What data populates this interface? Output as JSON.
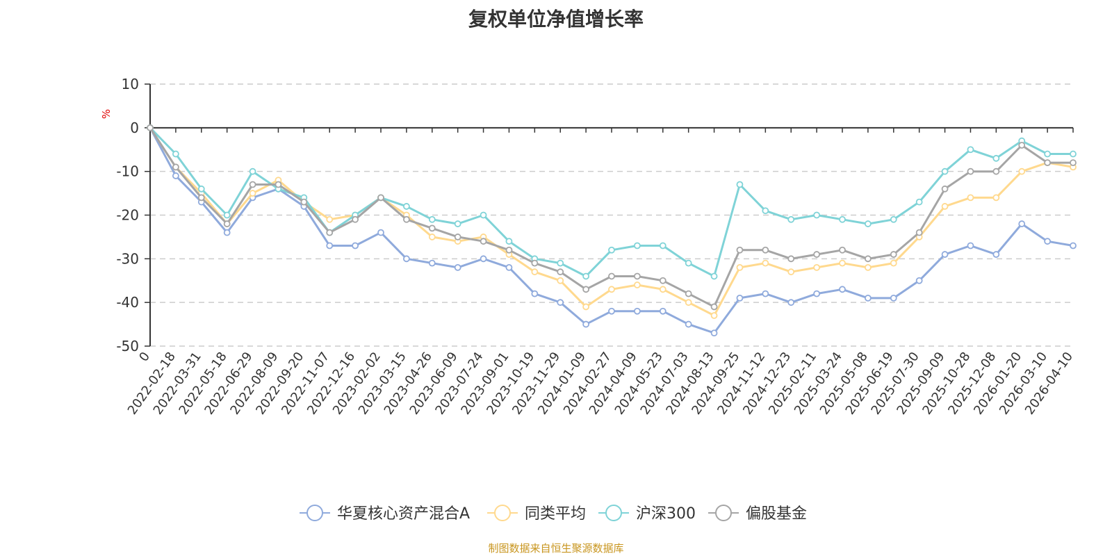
{
  "chart_data": {
    "type": "line",
    "title": "复权单位净值增长率",
    "ylabel": "%",
    "ylim": [
      -50,
      10
    ],
    "yticks": [
      10,
      0,
      -10,
      -20,
      -30,
      -40,
      -50
    ],
    "categories": [
      "0",
      "2022-02-18",
      "2022-03-31",
      "2022-05-18",
      "2022-06-29",
      "2022-08-09",
      "2022-09-20",
      "2022-11-07",
      "2022-12-16",
      "2023-02-02",
      "2023-03-15",
      "2023-04-26",
      "2023-06-09",
      "2023-07-24",
      "2023-09-01",
      "2023-10-19",
      "2023-11-29",
      "2024-01-09",
      "2024-02-27",
      "2024-04-09",
      "2024-05-23",
      "2024-07-03",
      "2024-08-13",
      "2024-09-25",
      "2024-11-12",
      "2024-12-23",
      "2025-02-11",
      "2025-03-24",
      "2025-05-08",
      "2025-06-19",
      "2025-07-30",
      "2025-09-09",
      "2025-10-28",
      "2025-12-08",
      "2026-01-20",
      "2026-03-10",
      "2026-04-10"
    ],
    "series": [
      {
        "name": "华夏核心资产混合A",
        "color": "#8faadc",
        "values": [
          0,
          -11,
          -17,
          -24,
          -16,
          -14,
          -18,
          -27,
          -27,
          -24,
          -30,
          -31,
          -32,
          -30,
          -32,
          -38,
          -40,
          -45,
          -42,
          -42,
          -42,
          -45,
          -47,
          -39,
          -38,
          -40,
          -38,
          -37,
          -39,
          -39,
          -35,
          -29,
          -27,
          -29,
          -22,
          -26,
          -27
        ]
      },
      {
        "name": "同类平均",
        "color": "#ffd98e",
        "values": [
          0,
          -9,
          -15,
          -22,
          -15,
          -12,
          -17,
          -21,
          -20,
          -16,
          -20,
          -25,
          -26,
          -25,
          -29,
          -33,
          -35,
          -41,
          -37,
          -36,
          -37,
          -40,
          -43,
          -32,
          -31,
          -33,
          -32,
          -31,
          -32,
          -31,
          -25,
          -18,
          -16,
          -16,
          -10,
          -8,
          -9
        ]
      },
      {
        "name": "沪深300",
        "color": "#7fd3d7",
        "values": [
          0,
          -6,
          -14,
          -20,
          -10,
          -14,
          -16,
          -24,
          -20,
          -16,
          -18,
          -21,
          -22,
          -20,
          -26,
          -30,
          -31,
          -34,
          -28,
          -27,
          -27,
          -31,
          -34,
          -13,
          -19,
          -21,
          -20,
          -21,
          -22,
          -21,
          -17,
          -10,
          -5,
          -7,
          -3,
          -6,
          -6
        ]
      },
      {
        "name": "偏股基金",
        "color": "#a5a5a5",
        "values": [
          0,
          -9,
          -16,
          -22,
          -13,
          -13,
          -17,
          -24,
          -21,
          -16,
          -21,
          -23,
          -25,
          -26,
          -28,
          -31,
          -33,
          -37,
          -34,
          -34,
          -35,
          -38,
          -41,
          -28,
          -28,
          -30,
          -29,
          -28,
          -30,
          -29,
          -24,
          -14,
          -10,
          -10,
          -4,
          -8,
          -8
        ]
      }
    ]
  },
  "legend": [
    "华夏核心资产混合A",
    "同类平均",
    "沪深300",
    "偏股基金"
  ],
  "source": "制图数据来自恒生聚源数据库"
}
